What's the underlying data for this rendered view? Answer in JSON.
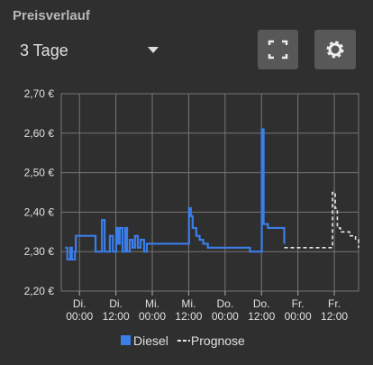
{
  "header": {
    "title": "Preisverlauf",
    "range": "3 Tage"
  },
  "chart_data": {
    "type": "step-line",
    "xlim": [
      -6,
      92
    ],
    "xticks": [
      {
        "value": 0,
        "label": "Di. 00:00"
      },
      {
        "value": 12,
        "label": "Di. 12:00"
      },
      {
        "value": 24,
        "label": "Mi. 00:00"
      },
      {
        "value": 36,
        "label": "Mi. 12:00"
      },
      {
        "value": 48,
        "label": "Do. 00:00"
      },
      {
        "value": 60,
        "label": "Do. 12:00"
      },
      {
        "value": 72,
        "label": "Fr. 00:00"
      },
      {
        "value": 84,
        "label": "Fr. 12:00"
      }
    ],
    "ylim": [
      2.2,
      2.7
    ],
    "yticks": [
      {
        "value": 2.2,
        "label": "2,20 €"
      },
      {
        "value": 2.3,
        "label": "2,30 €"
      },
      {
        "value": 2.4,
        "label": "2,40 €"
      },
      {
        "value": 2.5,
        "label": "2,50 €"
      },
      {
        "value": 2.6,
        "label": "2,60 €"
      },
      {
        "value": 2.7,
        "label": "2,70 €"
      }
    ],
    "grid": true,
    "series": [
      {
        "name": "Diesel",
        "color": "#3a7ee8",
        "dash": false,
        "x": [
          -4.7,
          -4,
          -3,
          -2.5,
          -1.5,
          -1.2,
          5.3,
          7.4,
          8.3,
          10,
          11,
          12.1,
          12.7,
          13.3,
          14.2,
          15.1,
          15.7,
          16.6,
          17.5,
          18.3,
          19.2,
          20.1,
          21.3,
          22.2,
          36.1,
          36.7,
          37.3,
          38.5,
          39.6,
          40.8,
          42.3,
          56.2,
          60.1,
          60.7,
          62.1,
          67.5
        ],
        "values": [
          2.31,
          2.28,
          2.31,
          2.28,
          2.3,
          2.34,
          2.3,
          2.38,
          2.3,
          2.34,
          2.3,
          2.36,
          2.32,
          2.36,
          2.3,
          2.36,
          2.3,
          2.33,
          2.31,
          2.34,
          2.31,
          2.33,
          2.3,
          2.32,
          2.41,
          2.39,
          2.36,
          2.34,
          2.33,
          2.32,
          2.31,
          2.3,
          2.61,
          2.37,
          2.36,
          2.32
        ]
      },
      {
        "name": "Prognose",
        "color": "#e8e8e8",
        "dash": true,
        "x": [
          67.5,
          78,
          83.4,
          84.3,
          85,
          86,
          89,
          91,
          92
        ],
        "values": [
          2.31,
          2.31,
          2.45,
          2.41,
          2.36,
          2.35,
          2.34,
          2.33,
          2.31
        ]
      }
    ]
  }
}
